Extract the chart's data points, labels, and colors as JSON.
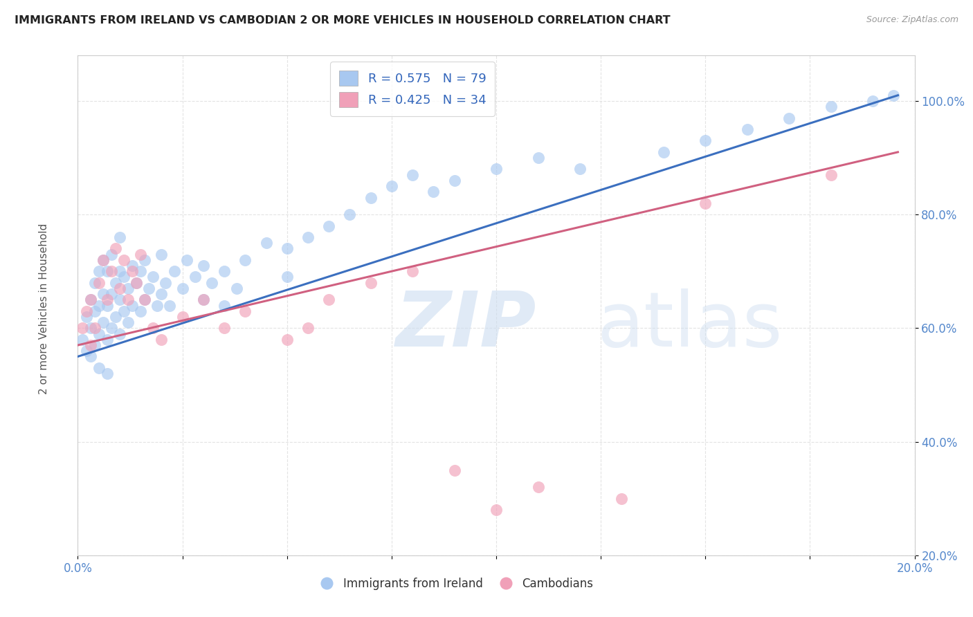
{
  "title": "IMMIGRANTS FROM IRELAND VS CAMBODIAN 2 OR MORE VEHICLES IN HOUSEHOLD CORRELATION CHART",
  "source": "Source: ZipAtlas.com",
  "ylabel": "2 or more Vehicles in Household",
  "legend_blue_r": "R = 0.575",
  "legend_blue_n": "N = 79",
  "legend_pink_r": "R = 0.425",
  "legend_pink_n": "N = 34",
  "blue_color": "#A8C8F0",
  "blue_line_color": "#3B6FBF",
  "pink_color": "#F0A0B8",
  "pink_line_color": "#D06080",
  "blue_scatter_x": [
    0.1,
    0.2,
    0.2,
    0.3,
    0.3,
    0.4,
    0.4,
    0.4,
    0.5,
    0.5,
    0.5,
    0.6,
    0.6,
    0.6,
    0.7,
    0.7,
    0.7,
    0.8,
    0.8,
    0.8,
    0.9,
    0.9,
    1.0,
    1.0,
    1.0,
    1.0,
    1.1,
    1.1,
    1.2,
    1.2,
    1.3,
    1.3,
    1.4,
    1.5,
    1.5,
    1.6,
    1.6,
    1.7,
    1.8,
    1.9,
    2.0,
    2.0,
    2.1,
    2.2,
    2.3,
    2.5,
    2.6,
    2.8,
    3.0,
    3.0,
    3.2,
    3.5,
    3.5,
    3.8,
    4.0,
    4.5,
    5.0,
    5.0,
    5.5,
    6.0,
    6.5,
    7.0,
    7.5,
    8.0,
    8.5,
    9.0,
    10.0,
    11.0,
    12.0,
    14.0,
    15.0,
    16.0,
    17.0,
    18.0,
    19.0,
    19.5,
    0.3,
    0.5,
    0.7
  ],
  "blue_scatter_y": [
    58.0,
    56.0,
    62.0,
    60.0,
    65.0,
    57.0,
    63.0,
    68.0,
    59.0,
    64.0,
    70.0,
    61.0,
    66.0,
    72.0,
    58.0,
    64.0,
    70.0,
    60.0,
    66.0,
    73.0,
    62.0,
    68.0,
    59.0,
    65.0,
    70.0,
    76.0,
    63.0,
    69.0,
    61.0,
    67.0,
    64.0,
    71.0,
    68.0,
    63.0,
    70.0,
    65.0,
    72.0,
    67.0,
    69.0,
    64.0,
    66.0,
    73.0,
    68.0,
    64.0,
    70.0,
    67.0,
    72.0,
    69.0,
    65.0,
    71.0,
    68.0,
    64.0,
    70.0,
    67.0,
    72.0,
    75.0,
    69.0,
    74.0,
    76.0,
    78.0,
    80.0,
    83.0,
    85.0,
    87.0,
    84.0,
    86.0,
    88.0,
    90.0,
    88.0,
    91.0,
    93.0,
    95.0,
    97.0,
    99.0,
    100.0,
    101.0,
    55.0,
    53.0,
    52.0
  ],
  "pink_scatter_x": [
    0.1,
    0.2,
    0.3,
    0.3,
    0.4,
    0.5,
    0.6,
    0.7,
    0.8,
    0.9,
    1.0,
    1.1,
    1.2,
    1.3,
    1.4,
    1.5,
    1.6,
    1.8,
    2.0,
    2.5,
    3.0,
    3.5,
    4.0,
    5.0,
    5.5,
    6.0,
    7.0,
    8.0,
    9.0,
    10.0,
    11.0,
    13.0,
    15.0,
    18.0
  ],
  "pink_scatter_y": [
    60.0,
    63.0,
    57.0,
    65.0,
    60.0,
    68.0,
    72.0,
    65.0,
    70.0,
    74.0,
    67.0,
    72.0,
    65.0,
    70.0,
    68.0,
    73.0,
    65.0,
    60.0,
    58.0,
    62.0,
    65.0,
    60.0,
    63.0,
    58.0,
    60.0,
    65.0,
    68.0,
    70.0,
    35.0,
    28.0,
    32.0,
    30.0,
    82.0,
    87.0
  ],
  "blue_line_x": [
    0.0,
    19.6
  ],
  "blue_line_y": [
    55.0,
    101.0
  ],
  "pink_line_x": [
    0.0,
    19.6
  ],
  "pink_line_y": [
    57.0,
    91.0
  ],
  "xmin": 0.0,
  "xmax": 20.0,
  "ymin": 20.0,
  "ymax": 108.0,
  "yticks": [
    20,
    40,
    60,
    80,
    100
  ],
  "xtick_positions": [
    0.0,
    2.5,
    5.0,
    7.5,
    10.0,
    12.5,
    15.0,
    17.5,
    20.0
  ],
  "xtick_show": [
    0.0,
    20.0
  ]
}
